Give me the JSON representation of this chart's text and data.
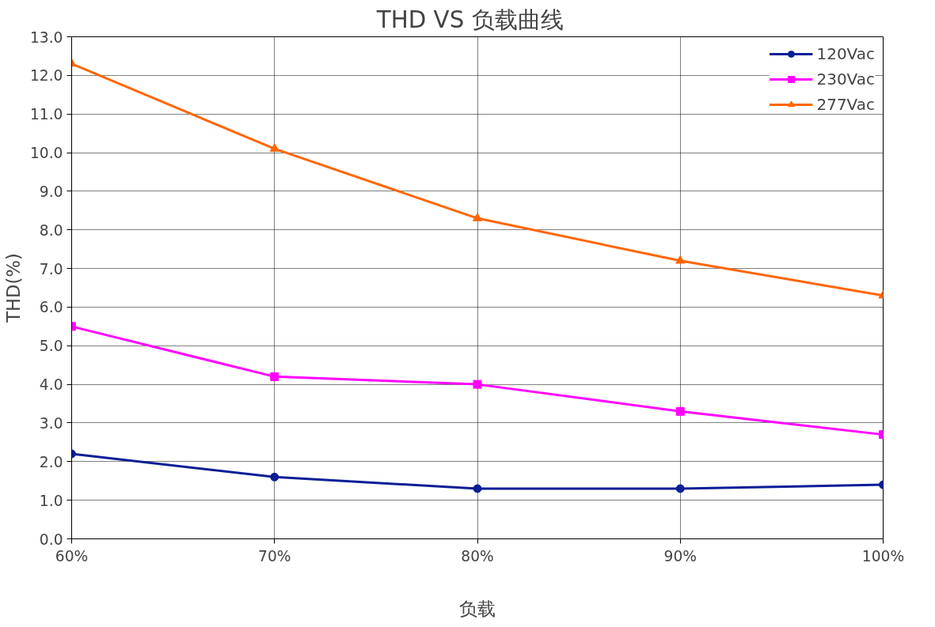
{
  "chart_data": {
    "type": "line",
    "title": "THD  VS  负载曲线",
    "xlabel": "负载",
    "ylabel": "THD(%)",
    "categories": [
      "60%",
      "70%",
      "80%",
      "90%",
      "100%"
    ],
    "series": [
      {
        "name": "120Vac",
        "color": "#0a1e96",
        "marker": "circle",
        "values": [
          2.2,
          1.6,
          1.3,
          1.3,
          1.4
        ]
      },
      {
        "name": "230Vac",
        "color": "#ff00ff",
        "marker": "square",
        "values": [
          5.5,
          4.2,
          4.0,
          3.3,
          2.7
        ]
      },
      {
        "name": "277Vac",
        "color": "#ff6600",
        "marker": "triangle",
        "values": [
          12.3,
          10.1,
          8.3,
          7.2,
          6.3
        ]
      }
    ],
    "ylim": [
      0,
      13
    ],
    "yticks": [
      {
        "value": 0,
        "label": "0.0"
      },
      {
        "value": 1,
        "label": "1.0"
      },
      {
        "value": 2,
        "label": "2.0"
      },
      {
        "value": 3,
        "label": "3.0"
      },
      {
        "value": 4,
        "label": "4.0"
      },
      {
        "value": 5,
        "label": "5.0"
      },
      {
        "value": 6,
        "label": "6.0"
      },
      {
        "value": 7,
        "label": "7.0"
      },
      {
        "value": 8,
        "label": "8.0"
      },
      {
        "value": 9,
        "label": "9.0"
      },
      {
        "value": 10,
        "label": "10.0"
      },
      {
        "value": 11,
        "label": "11.0"
      },
      {
        "value": 12,
        "label": "12.0"
      },
      {
        "value": 13,
        "label": "13.0"
      }
    ],
    "grid": true,
    "legend": "top right",
    "line_style": "solid"
  }
}
